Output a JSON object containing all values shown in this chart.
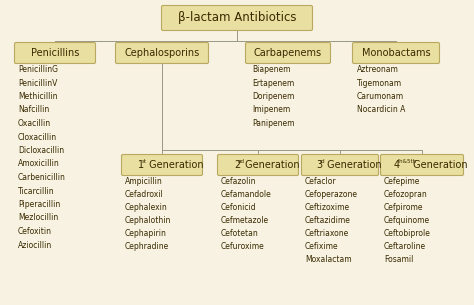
{
  "bg_color": "#f7f2e2",
  "box_fill": "#e8dfa0",
  "box_edge": "#b8a860",
  "text_color": "#3a2a00",
  "line_color": "#999988",
  "title": "β-lactam Antibiotics",
  "level1": [
    "Penicillins",
    "Cephalosporins",
    "Carbapenems",
    "Monobactams"
  ],
  "penicillins_list": [
    "PenicillinG",
    "PenicillinV",
    "Methicillin",
    "Nafcillin",
    "Oxacillin",
    "Cloxacillin",
    "Dicloxacillin",
    "Amoxicillin",
    "Carbenicillin",
    "Ticarcillin",
    "Piperacillin",
    "Mezlocillin",
    "Cefoxitin",
    "Aziocillin"
  ],
  "carbapenems_list": [
    "Biapenem",
    "Ertapenem",
    "Doripenem",
    "Imipenem",
    "Panipenem"
  ],
  "monobactams_list": [
    "Aztreonam",
    "Tigemonam",
    "Carumonam",
    "Nocardicin A"
  ],
  "gen1_list": [
    "Ampicillin",
    "Cefadroxil",
    "Cephalexin",
    "Cephalothin",
    "Cephapirin",
    "Cephradine"
  ],
  "gen2_list": [
    "Cefazolin",
    "Cefamandole",
    "Cefonicid",
    "Cefmetazole",
    "Cefotetan",
    "Cefuroxime"
  ],
  "gen3_list": [
    "Cefaclor",
    "Cefoperazone",
    "Ceftizoxime",
    "Ceftazidime",
    "Ceftriaxone",
    "Cefixime",
    "Moxalactam"
  ],
  "gen4_list": [
    "Cefepime",
    "Cefozopran",
    "Cefpirome",
    "Cefquinome",
    "Ceftobiprole",
    "Ceftaroline",
    "Fosamil"
  ],
  "font_size_title": 8.5,
  "font_size_box": 7.0,
  "font_size_list": 5.5,
  "font_size_sup": 4.0
}
